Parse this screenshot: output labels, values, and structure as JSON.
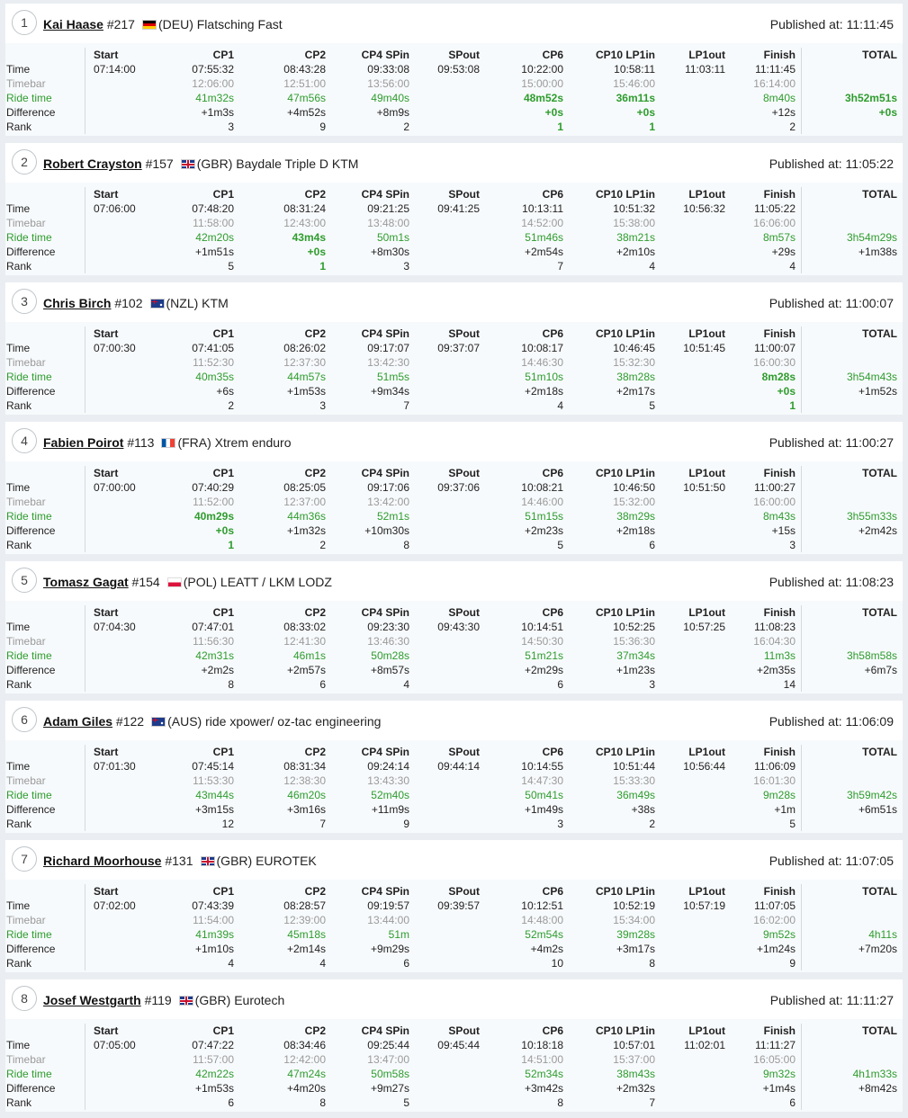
{
  "columns": [
    "Start",
    "CP1",
    "CP2",
    "CP4 SPin",
    "SPout",
    "CP6",
    "CP10 LP1in",
    "LP1out",
    "Finish",
    "TOTAL"
  ],
  "row_labels": [
    "Time",
    "Timebar",
    "Ride time",
    "Difference",
    "Rank"
  ],
  "published_label": "Published at:",
  "colors": {
    "ride_time": "#2e9c2e",
    "timebar": "#9a9a9a",
    "background": "#eaeef2",
    "card": "#f7fafc"
  },
  "entries": [
    {
      "position": "1",
      "name": "Kai Haase",
      "number": "#217",
      "flag": "deu",
      "team": "(DEU) Flatsching Fast",
      "published": "11:11:45",
      "time": [
        "07:14:00",
        "07:55:32",
        "08:43:28",
        "09:33:08",
        "09:53:08",
        "10:22:00",
        "10:58:11",
        "11:03:11",
        "11:11:45",
        ""
      ],
      "timebar": [
        "",
        "12:06:00",
        "12:51:00",
        "13:56:00",
        "",
        "15:00:00",
        "15:46:00",
        "",
        "16:14:00",
        ""
      ],
      "ride": [
        "",
        "41m32s",
        "47m56s",
        "49m40s",
        "",
        "48m52s",
        "36m11s",
        "",
        "8m40s",
        "3h52m51s"
      ],
      "diff": [
        "",
        "+1m3s",
        "+4m52s",
        "+8m9s",
        "",
        "+0s",
        "+0s",
        "",
        "+12s",
        "+0s"
      ],
      "rank": [
        "",
        "3",
        "9",
        "2",
        "",
        "1",
        "1",
        "",
        "2",
        ""
      ],
      "best": [
        5,
        6,
        9
      ]
    },
    {
      "position": "2",
      "name": "Robert Crayston",
      "number": "#157",
      "flag": "gbr",
      "team": "(GBR) Baydale Triple D KTM",
      "published": "11:05:22",
      "time": [
        "07:06:00",
        "07:48:20",
        "08:31:24",
        "09:21:25",
        "09:41:25",
        "10:13:11",
        "10:51:32",
        "10:56:32",
        "11:05:22",
        ""
      ],
      "timebar": [
        "",
        "11:58:00",
        "12:43:00",
        "13:48:00",
        "",
        "14:52:00",
        "15:38:00",
        "",
        "16:06:00",
        ""
      ],
      "ride": [
        "",
        "42m20s",
        "43m4s",
        "50m1s",
        "",
        "51m46s",
        "38m21s",
        "",
        "8m57s",
        "3h54m29s"
      ],
      "diff": [
        "",
        "+1m51s",
        "+0s",
        "+8m30s",
        "",
        "+2m54s",
        "+2m10s",
        "",
        "+29s",
        "+1m38s"
      ],
      "rank": [
        "",
        "5",
        "1",
        "3",
        "",
        "7",
        "4",
        "",
        "4",
        ""
      ],
      "best": [
        2
      ]
    },
    {
      "position": "3",
      "name": "Chris Birch",
      "number": "#102",
      "flag": "nzl",
      "team": "(NZL) KTM",
      "published": "11:00:07",
      "time": [
        "07:00:30",
        "07:41:05",
        "08:26:02",
        "09:17:07",
        "09:37:07",
        "10:08:17",
        "10:46:45",
        "10:51:45",
        "11:00:07",
        ""
      ],
      "timebar": [
        "",
        "11:52:30",
        "12:37:30",
        "13:42:30",
        "",
        "14:46:30",
        "15:32:30",
        "",
        "16:00:30",
        ""
      ],
      "ride": [
        "",
        "40m35s",
        "44m57s",
        "51m5s",
        "",
        "51m10s",
        "38m28s",
        "",
        "8m28s",
        "3h54m43s"
      ],
      "diff": [
        "",
        "+6s",
        "+1m53s",
        "+9m34s",
        "",
        "+2m18s",
        "+2m17s",
        "",
        "+0s",
        "+1m52s"
      ],
      "rank": [
        "",
        "2",
        "3",
        "7",
        "",
        "4",
        "5",
        "",
        "1",
        ""
      ],
      "best": [
        8
      ]
    },
    {
      "position": "4",
      "name": "Fabien Poirot",
      "number": "#113",
      "flag": "fra",
      "team": "(FRA) Xtrem enduro",
      "published": "11:00:27",
      "time": [
        "07:00:00",
        "07:40:29",
        "08:25:05",
        "09:17:06",
        "09:37:06",
        "10:08:21",
        "10:46:50",
        "10:51:50",
        "11:00:27",
        ""
      ],
      "timebar": [
        "",
        "11:52:00",
        "12:37:00",
        "13:42:00",
        "",
        "14:46:00",
        "15:32:00",
        "",
        "16:00:00",
        ""
      ],
      "ride": [
        "",
        "40m29s",
        "44m36s",
        "52m1s",
        "",
        "51m15s",
        "38m29s",
        "",
        "8m43s",
        "3h55m33s"
      ],
      "diff": [
        "",
        "+0s",
        "+1m32s",
        "+10m30s",
        "",
        "+2m23s",
        "+2m18s",
        "",
        "+15s",
        "+2m42s"
      ],
      "rank": [
        "",
        "1",
        "2",
        "8",
        "",
        "5",
        "6",
        "",
        "3",
        ""
      ],
      "best": [
        1
      ]
    },
    {
      "position": "5",
      "name": "Tomasz Gagat",
      "number": "#154",
      "flag": "pol",
      "team": "(POL) LEATT / LKM LODZ",
      "published": "11:08:23",
      "time": [
        "07:04:30",
        "07:47:01",
        "08:33:02",
        "09:23:30",
        "09:43:30",
        "10:14:51",
        "10:52:25",
        "10:57:25",
        "11:08:23",
        ""
      ],
      "timebar": [
        "",
        "11:56:30",
        "12:41:30",
        "13:46:30",
        "",
        "14:50:30",
        "15:36:30",
        "",
        "16:04:30",
        ""
      ],
      "ride": [
        "",
        "42m31s",
        "46m1s",
        "50m28s",
        "",
        "51m21s",
        "37m34s",
        "",
        "11m3s",
        "3h58m58s"
      ],
      "diff": [
        "",
        "+2m2s",
        "+2m57s",
        "+8m57s",
        "",
        "+2m29s",
        "+1m23s",
        "",
        "+2m35s",
        "+6m7s"
      ],
      "rank": [
        "",
        "8",
        "6",
        "4",
        "",
        "6",
        "3",
        "",
        "14",
        ""
      ],
      "best": []
    },
    {
      "position": "6",
      "name": "Adam Giles",
      "number": "#122",
      "flag": "aus",
      "team": "(AUS) ride xpower/ oz-tac engineering",
      "published": "11:06:09",
      "time": [
        "07:01:30",
        "07:45:14",
        "08:31:34",
        "09:24:14",
        "09:44:14",
        "10:14:55",
        "10:51:44",
        "10:56:44",
        "11:06:09",
        ""
      ],
      "timebar": [
        "",
        "11:53:30",
        "12:38:30",
        "13:43:30",
        "",
        "14:47:30",
        "15:33:30",
        "",
        "16:01:30",
        ""
      ],
      "ride": [
        "",
        "43m44s",
        "46m20s",
        "52m40s",
        "",
        "50m41s",
        "36m49s",
        "",
        "9m28s",
        "3h59m42s"
      ],
      "diff": [
        "",
        "+3m15s",
        "+3m16s",
        "+11m9s",
        "",
        "+1m49s",
        "+38s",
        "",
        "+1m",
        "+6m51s"
      ],
      "rank": [
        "",
        "12",
        "7",
        "9",
        "",
        "3",
        "2",
        "",
        "5",
        ""
      ],
      "best": []
    },
    {
      "position": "7",
      "name": "Richard Moorhouse",
      "number": "#131",
      "flag": "gbr",
      "team": "(GBR) EUROTEK",
      "published": "11:07:05",
      "time": [
        "07:02:00",
        "07:43:39",
        "08:28:57",
        "09:19:57",
        "09:39:57",
        "10:12:51",
        "10:52:19",
        "10:57:19",
        "11:07:05",
        ""
      ],
      "timebar": [
        "",
        "11:54:00",
        "12:39:00",
        "13:44:00",
        "",
        "14:48:00",
        "15:34:00",
        "",
        "16:02:00",
        ""
      ],
      "ride": [
        "",
        "41m39s",
        "45m18s",
        "51m",
        "",
        "52m54s",
        "39m28s",
        "",
        "9m52s",
        "4h11s"
      ],
      "diff": [
        "",
        "+1m10s",
        "+2m14s",
        "+9m29s",
        "",
        "+4m2s",
        "+3m17s",
        "",
        "+1m24s",
        "+7m20s"
      ],
      "rank": [
        "",
        "4",
        "4",
        "6",
        "",
        "10",
        "8",
        "",
        "9",
        ""
      ],
      "best": []
    },
    {
      "position": "8",
      "name": "Josef Westgarth",
      "number": "#119",
      "flag": "gbr",
      "team": "(GBR) Eurotech",
      "published": "11:11:27",
      "time": [
        "07:05:00",
        "07:47:22",
        "08:34:46",
        "09:25:44",
        "09:45:44",
        "10:18:18",
        "10:57:01",
        "11:02:01",
        "11:11:27",
        ""
      ],
      "timebar": [
        "",
        "11:57:00",
        "12:42:00",
        "13:47:00",
        "",
        "14:51:00",
        "15:37:00",
        "",
        "16:05:00",
        ""
      ],
      "ride": [
        "",
        "42m22s",
        "47m24s",
        "50m58s",
        "",
        "52m34s",
        "38m43s",
        "",
        "9m32s",
        "4h1m33s"
      ],
      "diff": [
        "",
        "+1m53s",
        "+4m20s",
        "+9m27s",
        "",
        "+3m42s",
        "+2m32s",
        "",
        "+1m4s",
        "+8m42s"
      ],
      "rank": [
        "",
        "6",
        "8",
        "5",
        "",
        "8",
        "7",
        "",
        "6",
        ""
      ],
      "best": []
    }
  ]
}
